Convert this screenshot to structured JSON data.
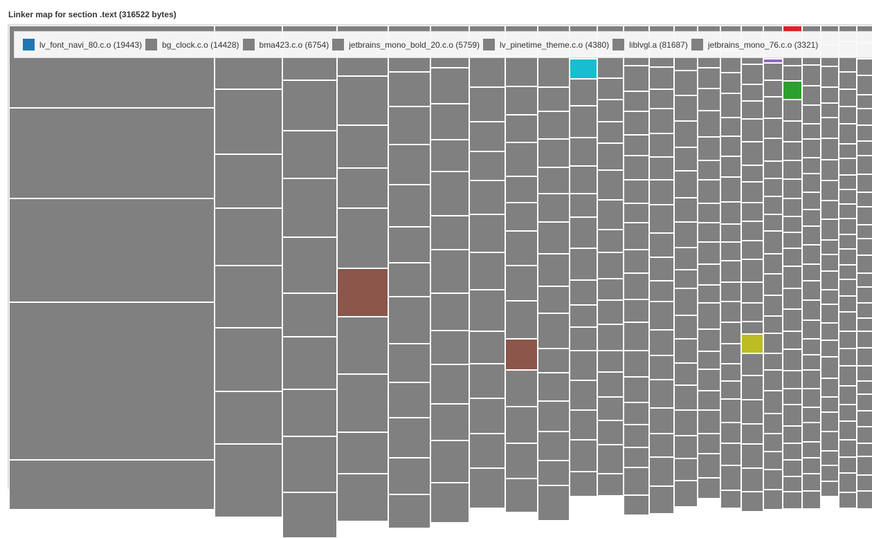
{
  "title": "Linker map for section .text (316522 bytes)",
  "chart_data": {
    "type": "treemap",
    "title": "Linker map for section .text (316522 bytes)",
    "default_color": "#808080",
    "legend": [
      {
        "name": "lv_font_navi_80.c.o",
        "value": 19443,
        "color": "#1f77b4"
      },
      {
        "name": "bg_clock.c.o",
        "value": 14428,
        "color": "#808080"
      },
      {
        "name": "bma423.c.o",
        "value": 6754,
        "color": "#808080"
      },
      {
        "name": "jetbrains_mono_bold_20.c.o",
        "value": 5759,
        "color": "#808080"
      },
      {
        "name": "lv_pinetime_theme.c.o",
        "value": 4380,
        "color": "#808080"
      },
      {
        "name": "liblvgl.a",
        "value": 81687,
        "color": "#808080"
      },
      {
        "name": "jetbrains_mono_76.c.o",
        "value": 3321,
        "color": "#808080"
      }
    ],
    "highlight_colors": [
      "#8c564b",
      "#17becf",
      "#bcbd22",
      "#2ca02c",
      "#9467bd",
      "#d62728"
    ],
    "legend_position": "top"
  }
}
